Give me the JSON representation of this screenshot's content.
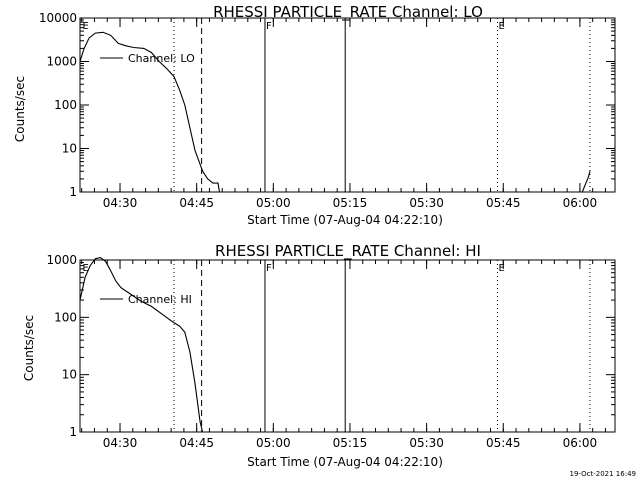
{
  "footer": {
    "timestamp": "19-Oct-2021 16:49"
  },
  "chart_data": [
    {
      "type": "line",
      "title": "RHESSI PARTICLE_RATE Channel: LO",
      "xlabel": "Start Time (07-Aug-04 04:22:10)",
      "ylabel": "Counts/sec",
      "x_unit": "minutes after 04:22:10",
      "xlim": [
        0,
        104.7
      ],
      "ylim": [
        1,
        10000
      ],
      "yscale": "log",
      "xticks": [
        "04:30",
        "04:45",
        "05:00",
        "05:15",
        "05:30",
        "05:45",
        "06:00"
      ],
      "yticks": [
        "1",
        "10",
        "100",
        "1000",
        "10000"
      ],
      "legend": {
        "label": "Channel: LO",
        "placement": "upper-left"
      },
      "markers": [
        {
          "label": "E",
          "x": 0.3
        },
        {
          "label": "F",
          "x": 36.2
        },
        {
          "label": "E",
          "x": 81.7
        }
      ],
      "vlines": [
        {
          "x": 18.4,
          "style": "dotted"
        },
        {
          "x": 23.8,
          "style": "dashed"
        },
        {
          "x": 36.2,
          "style": "solid"
        },
        {
          "x": 51.9,
          "style": "solid"
        },
        {
          "x": 81.7,
          "style": "dotted"
        },
        {
          "x": 99.8,
          "style": "dotted"
        }
      ],
      "series": [
        {
          "name": "Channel: LO",
          "segments": [
            {
              "x": [
                0.0,
                0.8,
                1.8,
                3.0,
                4.5,
                6.0,
                7.5,
                9.0,
                10.5,
                12.5,
                14.0,
                15.5,
                17.0,
                18.4,
                19.5,
                20.5,
                21.5,
                22.5,
                23.3,
                24.0,
                25.0,
                26.0,
                27.0,
                27.3
              ],
              "y": [
                1000,
                2000,
                3500,
                4500,
                4700,
                4000,
                2600,
                2300,
                2100,
                2000,
                1600,
                1000,
                680,
                450,
                220,
                100,
                30,
                9,
                5,
                3,
                2,
                1.6,
                1.6,
                1
              ]
            },
            {
              "x": [
                98.3,
                99.0,
                99.5,
                99.8
              ],
              "y": [
                1,
                1.6,
                2.2,
                3
              ]
            }
          ]
        }
      ]
    },
    {
      "type": "line",
      "title": "RHESSI PARTICLE_RATE Channel: HI",
      "xlabel": "Start Time (07-Aug-04 04:22:10)",
      "ylabel": "Counts/sec",
      "x_unit": "minutes after 04:22:10",
      "xlim": [
        0,
        104.7
      ],
      "ylim": [
        1,
        1000
      ],
      "yscale": "log",
      "xticks": [
        "04:30",
        "04:45",
        "05:00",
        "05:15",
        "05:30",
        "05:45",
        "06:00"
      ],
      "yticks": [
        "1",
        "10",
        "100",
        "1000"
      ],
      "legend": {
        "label": "Channel: HI",
        "placement": "upper-left"
      },
      "markers": [
        {
          "label": "E",
          "x": 0.3
        },
        {
          "label": "F",
          "x": 36.2
        },
        {
          "label": "E",
          "x": 81.7
        }
      ],
      "vlines": [
        {
          "x": 18.4,
          "style": "dotted"
        },
        {
          "x": 23.8,
          "style": "dashed"
        },
        {
          "x": 36.2,
          "style": "solid"
        },
        {
          "x": 51.9,
          "style": "solid"
        },
        {
          "x": 81.7,
          "style": "dotted"
        },
        {
          "x": 99.8,
          "style": "dotted"
        }
      ],
      "series": [
        {
          "name": "Channel: HI",
          "segments": [
            {
              "x": [
                0.0,
                1.0,
                2.0,
                3.0,
                4.0,
                5.0,
                6.0,
                7.0,
                8.0,
                10.0,
                12.0,
                14.0,
                16.0,
                18.0,
                19.5,
                20.5,
                21.5,
                22.5,
                23.5,
                24.0
              ],
              "y": [
                200,
                500,
                800,
                1050,
                1100,
                950,
                650,
                430,
                330,
                250,
                190,
                155,
                115,
                85,
                70,
                55,
                25,
                7,
                1.5,
                1
              ]
            }
          ]
        }
      ]
    }
  ]
}
